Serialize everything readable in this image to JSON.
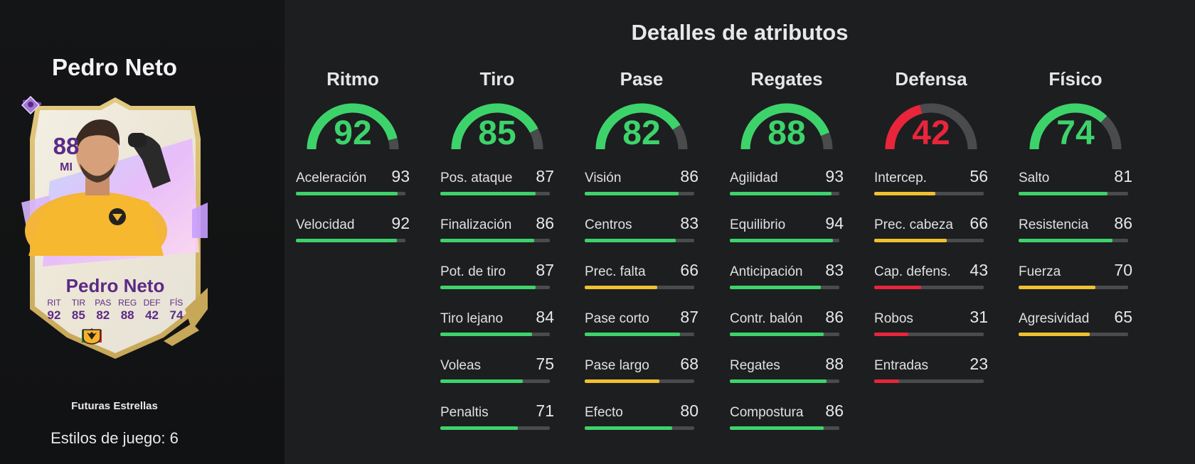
{
  "colors": {
    "green": "#3dd36b",
    "yellow": "#f0c030",
    "red": "#e8253b",
    "track": "#4a4b4d"
  },
  "player": {
    "name": "Pedro Neto",
    "promo": "Futuras Estrellas",
    "playstyles_label": "Estilos de juego: 6"
  },
  "card": {
    "rating": "88",
    "position": "MI",
    "name": "Pedro Neto",
    "stats": [
      {
        "label": "RIT",
        "value": "92"
      },
      {
        "label": "TIR",
        "value": "85"
      },
      {
        "label": "PAS",
        "value": "82"
      },
      {
        "label": "REG",
        "value": "88"
      },
      {
        "label": "DEF",
        "value": "42"
      },
      {
        "label": "FÍS",
        "value": "74"
      }
    ],
    "icons": [
      "boot-icon",
      "playstyle-diamond-icon",
      "portugal-flag-icon",
      "premier-league-icon",
      "wolves-crest-icon"
    ]
  },
  "title": "Detalles de atributos",
  "categories": [
    {
      "name": "Ritmo",
      "value": 92,
      "color": "green",
      "attributes": [
        {
          "name": "Aceleración",
          "value": 93,
          "color": "green"
        },
        {
          "name": "Velocidad",
          "value": 92,
          "color": "green"
        }
      ]
    },
    {
      "name": "Tiro",
      "value": 85,
      "color": "green",
      "attributes": [
        {
          "name": "Pos. ataque",
          "value": 87,
          "color": "green"
        },
        {
          "name": "Finalización",
          "value": 86,
          "color": "green"
        },
        {
          "name": "Pot. de tiro",
          "value": 87,
          "color": "green"
        },
        {
          "name": "Tiro lejano",
          "value": 84,
          "color": "green"
        },
        {
          "name": "Voleas",
          "value": 75,
          "color": "green"
        },
        {
          "name": "Penaltis",
          "value": 71,
          "color": "green"
        }
      ]
    },
    {
      "name": "Pase",
      "value": 82,
      "color": "green",
      "attributes": [
        {
          "name": "Visión",
          "value": 86,
          "color": "green"
        },
        {
          "name": "Centros",
          "value": 83,
          "color": "green"
        },
        {
          "name": "Prec. falta",
          "value": 66,
          "color": "yellow"
        },
        {
          "name": "Pase corto",
          "value": 87,
          "color": "green"
        },
        {
          "name": "Pase largo",
          "value": 68,
          "color": "yellow"
        },
        {
          "name": "Efecto",
          "value": 80,
          "color": "green"
        }
      ]
    },
    {
      "name": "Regates",
      "value": 88,
      "color": "green",
      "attributes": [
        {
          "name": "Agilidad",
          "value": 93,
          "color": "green"
        },
        {
          "name": "Equilibrio",
          "value": 94,
          "color": "green"
        },
        {
          "name": "Anticipación",
          "value": 83,
          "color": "green"
        },
        {
          "name": "Contr. balón",
          "value": 86,
          "color": "green"
        },
        {
          "name": "Regates",
          "value": 88,
          "color": "green"
        },
        {
          "name": "Compostura",
          "value": 86,
          "color": "green"
        }
      ]
    },
    {
      "name": "Defensa",
      "value": 42,
      "color": "red",
      "attributes": [
        {
          "name": "Intercep.",
          "value": 56,
          "color": "yellow"
        },
        {
          "name": "Prec. cabeza",
          "value": 66,
          "color": "yellow"
        },
        {
          "name": "Cap. defens.",
          "value": 43,
          "color": "red"
        },
        {
          "name": "Robos",
          "value": 31,
          "color": "red"
        },
        {
          "name": "Entradas",
          "value": 23,
          "color": "red"
        }
      ]
    },
    {
      "name": "Físico",
      "value": 74,
      "color": "green",
      "attributes": [
        {
          "name": "Salto",
          "value": 81,
          "color": "green"
        },
        {
          "name": "Resistencia",
          "value": 86,
          "color": "green"
        },
        {
          "name": "Fuerza",
          "value": 70,
          "color": "yellow"
        },
        {
          "name": "Agresividad",
          "value": 65,
          "color": "yellow"
        }
      ]
    }
  ]
}
